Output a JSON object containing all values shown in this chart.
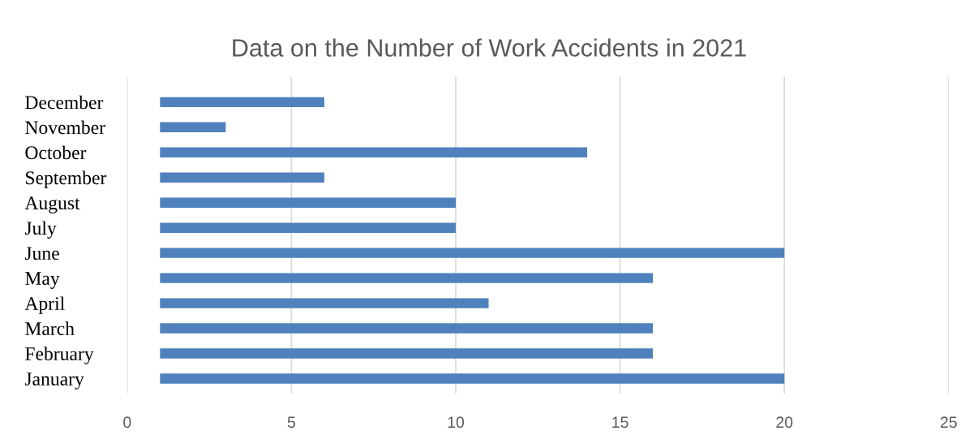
{
  "chart_data": {
    "type": "bar",
    "orientation": "horizontal",
    "title": "Data on the Number of Work Accidents in 2021",
    "categories": [
      "December",
      "November",
      "October",
      "September",
      "August",
      "July",
      "June",
      "May",
      "April",
      "March",
      "February",
      "January"
    ],
    "base": [
      1,
      1,
      1,
      1,
      1,
      1,
      1,
      1,
      1,
      1,
      1,
      1
    ],
    "values": [
      5,
      2,
      13,
      5,
      9,
      9,
      19,
      15,
      10,
      15,
      15,
      19
    ],
    "color": "#4f81bd",
    "xlim": [
      0,
      25
    ],
    "xticks": [
      0,
      5,
      10,
      15,
      20,
      25
    ],
    "grid": "x"
  }
}
